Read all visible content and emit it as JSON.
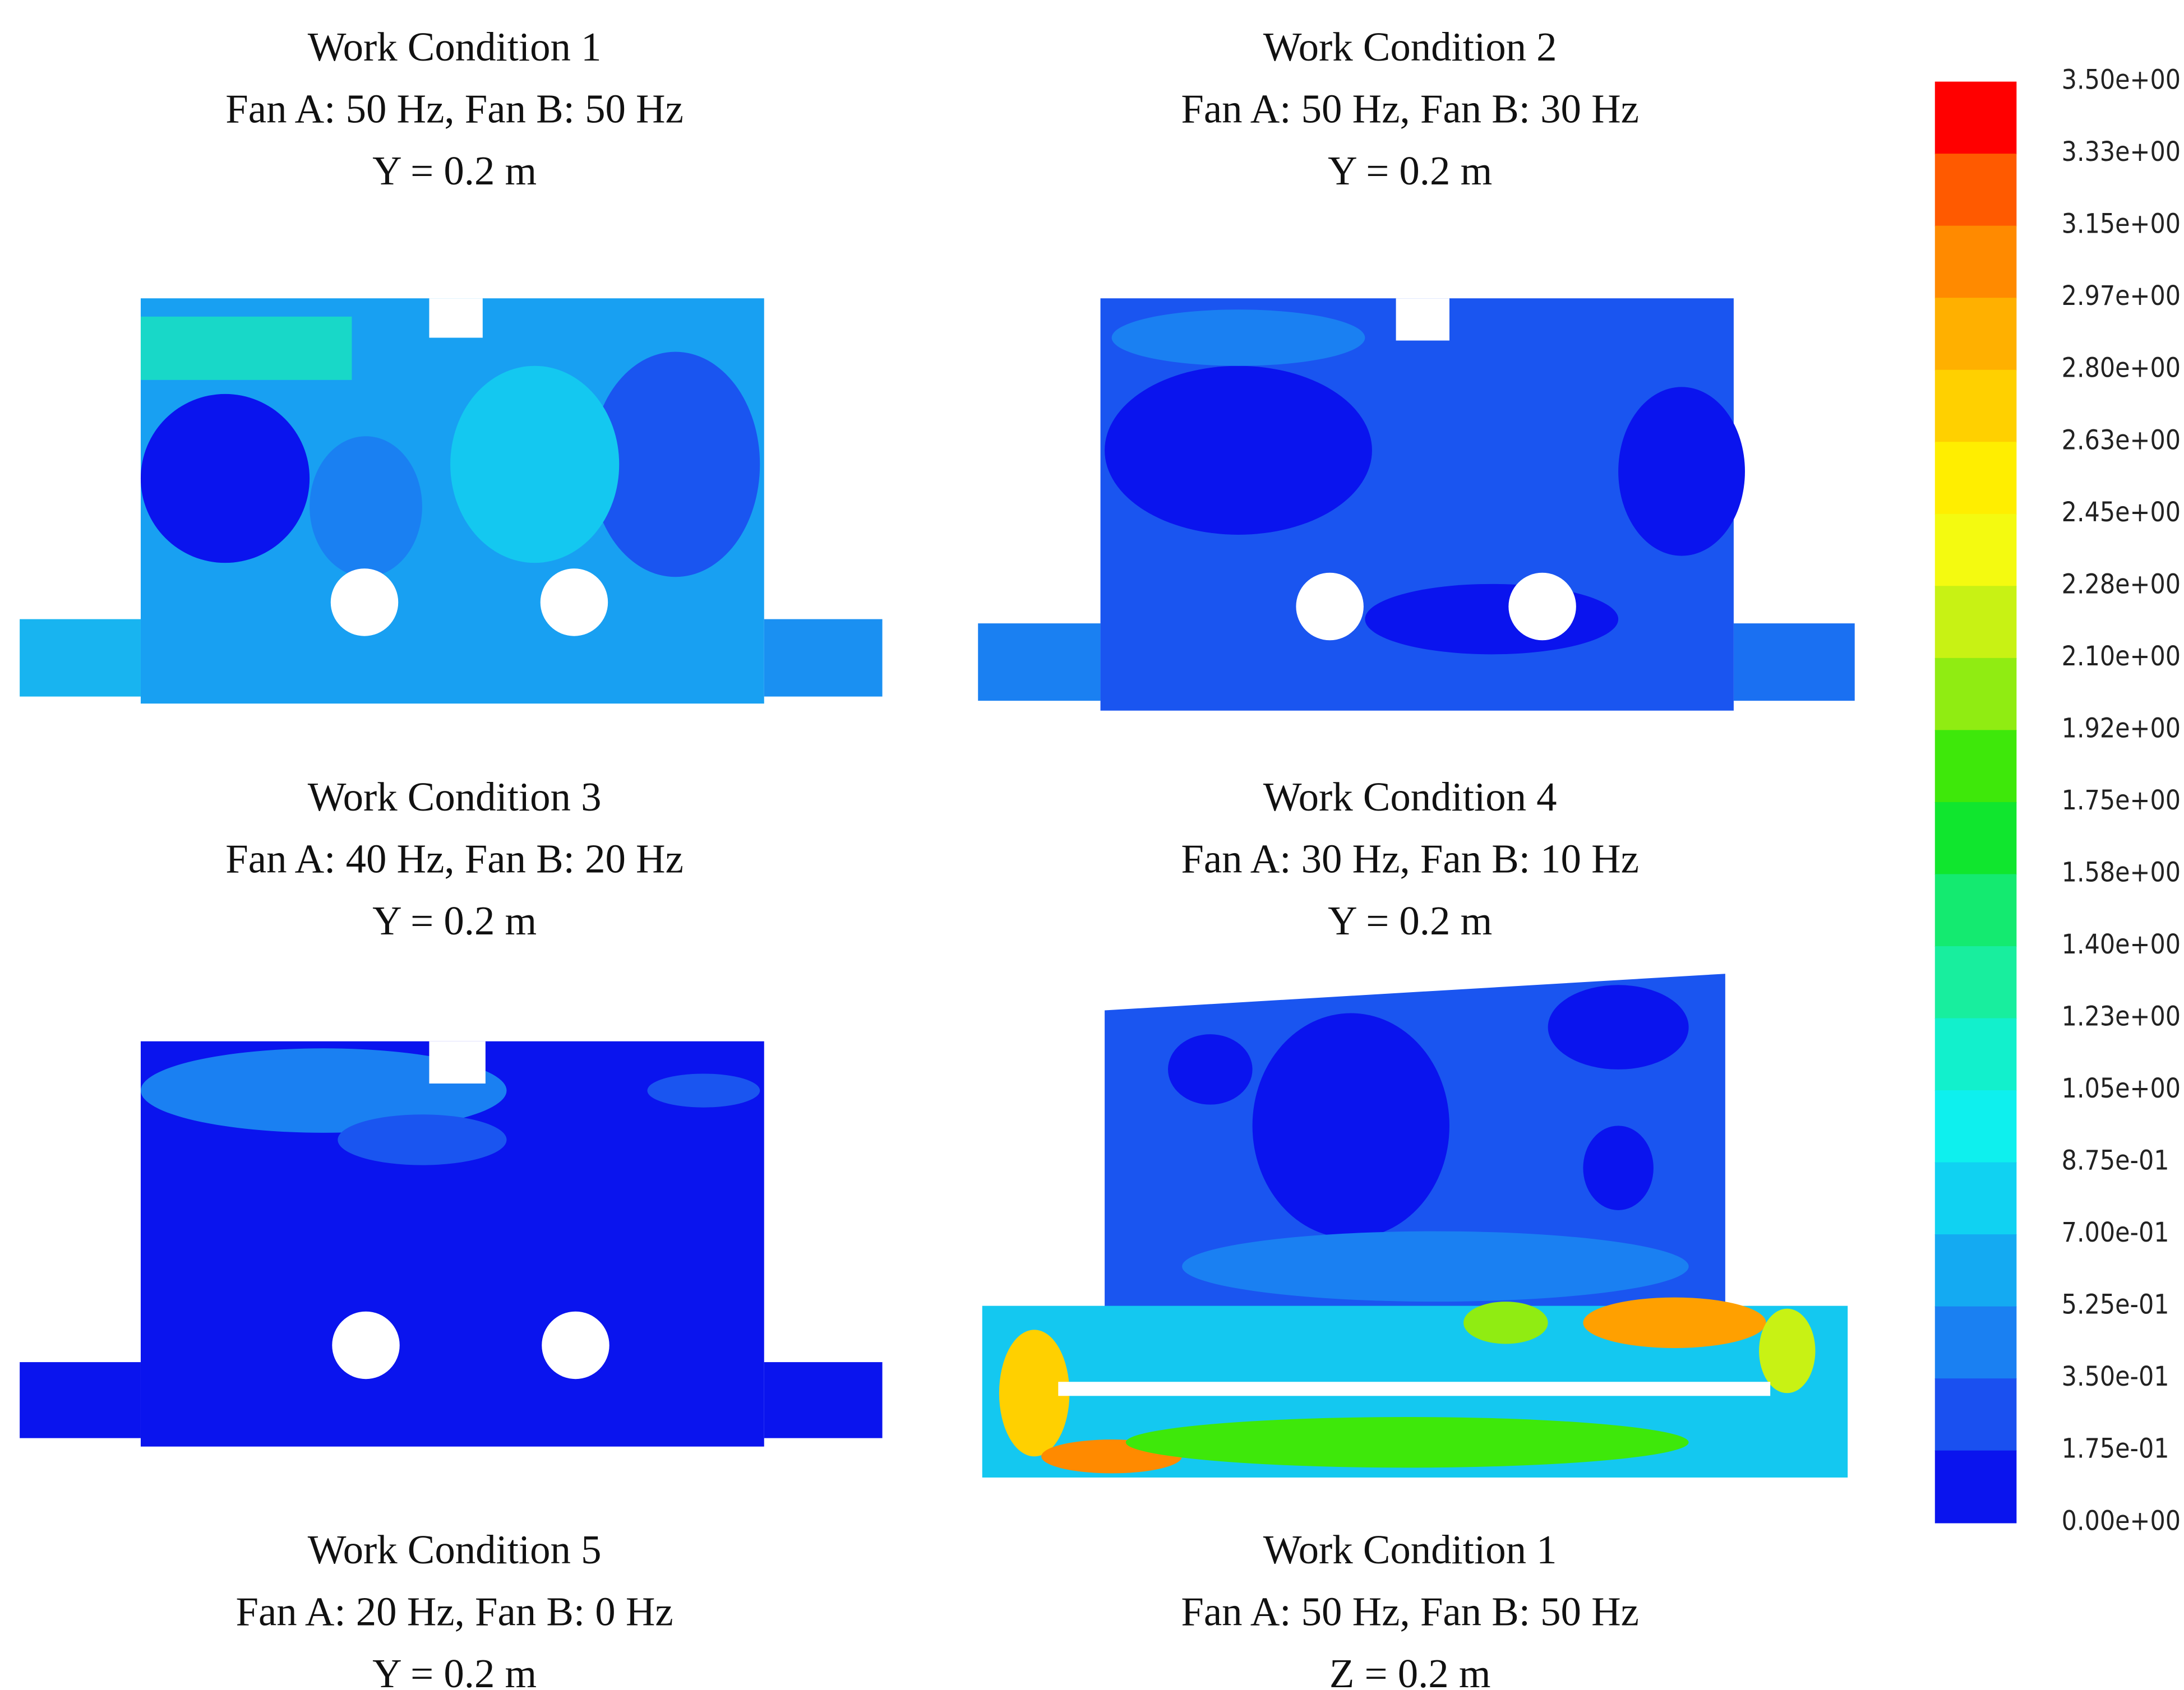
{
  "panels": [
    {
      "lines": [
        "Work Condition 1",
        "Fan A: 50 Hz, Fan B: 50 Hz",
        "Y = 0.2 m"
      ]
    },
    {
      "lines": [
        "Work Condition 2",
        "Fan A: 50 Hz, Fan B: 30 Hz",
        "Y = 0.2 m"
      ]
    },
    {
      "lines": [
        "Work Condition 3",
        "Fan A: 40 Hz, Fan B: 20 Hz",
        "Y = 0.2 m"
      ]
    },
    {
      "lines": [
        "Work Condition 4",
        "Fan A: 30 Hz, Fan B: 10 Hz",
        "Y = 0.2 m"
      ]
    },
    {
      "lines": [
        "Work Condition 5",
        "Fan A: 20 Hz, Fan B: 0 Hz",
        "Y = 0.2 m"
      ]
    },
    {
      "lines": [
        "Work Condition 1",
        "Fan A: 50 Hz, Fan B: 50 Hz",
        "Z = 0.2 m"
      ]
    }
  ],
  "colorbar": {
    "labels": [
      "3.50e+00",
      "3.33e+00",
      "3.15e+00",
      "2.97e+00",
      "2.80e+00",
      "2.63e+00",
      "2.45e+00",
      "2.28e+00",
      "2.10e+00",
      "1.92e+00",
      "1.75e+00",
      "1.58e+00",
      "1.40e+00",
      "1.23e+00",
      "1.05e+00",
      "8.75e-01",
      "7.00e-01",
      "5.25e-01",
      "3.50e-01",
      "1.75e-01",
      "0.00e+00"
    ],
    "colors": [
      "#ff0000",
      "#ff5a00",
      "#ff8a00",
      "#ffb000",
      "#ffd000",
      "#ffee00",
      "#f4fa10",
      "#c8f214",
      "#90ec12",
      "#3ee80a",
      "#10e62e",
      "#14ea70",
      "#18ee9e",
      "#12f0cc",
      "#0ef0ee",
      "#10d2f2",
      "#14aaf2",
      "#1a80f2",
      "#1a50f0",
      "#0a14ee"
    ]
  }
}
